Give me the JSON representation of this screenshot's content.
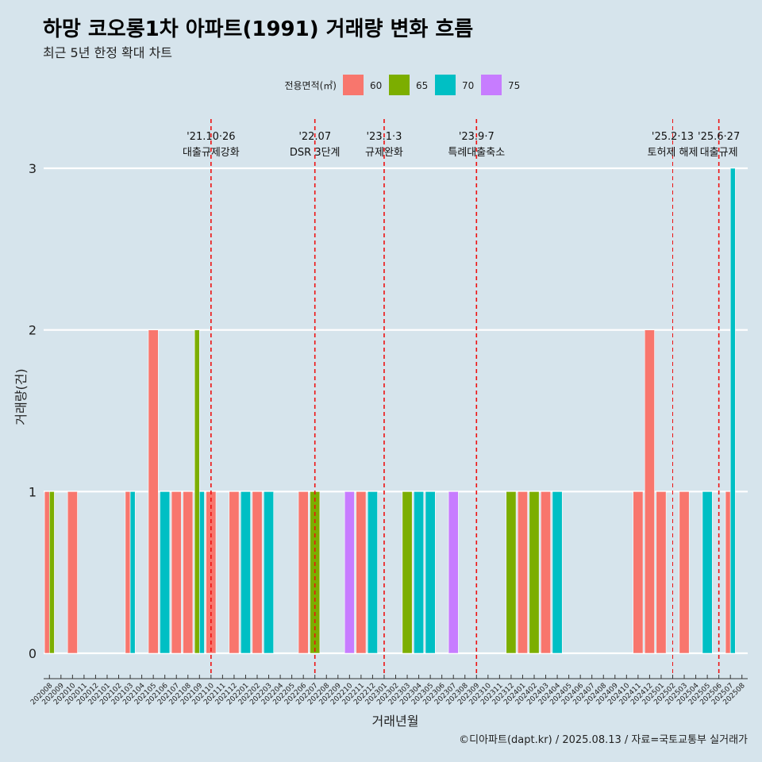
{
  "title": "하망 코오롱1차 아파트(1991) 거래량 변화 흐름",
  "subtitle": "최근 5년 한정 확대 차트",
  "caption": "©디아파트(dapt.kr) / 2025.08.13 / 자료=국토교통부 실거래가",
  "chart_data": {
    "type": "bar",
    "title": "하망 코오롱1차 아파트(1991) 거래량 변화 흐름",
    "subtitle": "최근 5년 한정 확대 차트",
    "xlabel": "거래년월",
    "ylabel": "거래량(건)",
    "ylim": [
      0,
      3
    ],
    "yticks": [
      0,
      1,
      2,
      3
    ],
    "grid": true,
    "legend": {
      "title": "전용면적(㎡)",
      "position": "top"
    },
    "categories": [
      "202008",
      "202009",
      "202010",
      "202011",
      "202012",
      "202101",
      "202102",
      "202103",
      "202104",
      "202105",
      "202106",
      "202107",
      "202108",
      "202109",
      "202110",
      "202111",
      "202112",
      "202201",
      "202202",
      "202203",
      "202204",
      "202205",
      "202206",
      "202207",
      "202208",
      "202209",
      "202210",
      "202211",
      "202212",
      "202301",
      "202302",
      "202303",
      "202304",
      "202305",
      "202306",
      "202307",
      "202308",
      "202309",
      "202310",
      "202311",
      "202312",
      "202401",
      "202402",
      "202403",
      "202404",
      "202405",
      "202406",
      "202407",
      "202408",
      "202409",
      "202410",
      "202411",
      "202412",
      "202501",
      "202502",
      "202503",
      "202504",
      "202505",
      "202506",
      "202507",
      "202508"
    ],
    "series": [
      {
        "name": "60",
        "color": "#F8766D",
        "values": [
          1,
          0,
          1,
          0,
          0,
          0,
          0,
          1,
          0,
          2,
          0,
          1,
          1,
          0,
          1,
          0,
          1,
          0,
          1,
          0,
          0,
          0,
          1,
          0,
          0,
          0,
          0,
          1,
          0,
          0,
          0,
          0,
          0,
          0,
          0,
          0,
          0,
          0,
          0,
          0,
          0,
          1,
          0,
          1,
          0,
          0,
          0,
          0,
          0,
          0,
          0,
          1,
          2,
          1,
          0,
          1,
          0,
          0,
          0,
          1,
          0
        ]
      },
      {
        "name": "65",
        "color": "#7CAE00",
        "values": [
          1,
          0,
          0,
          0,
          0,
          0,
          0,
          0,
          0,
          0,
          0,
          0,
          0,
          2,
          0,
          0,
          0,
          0,
          0,
          0,
          0,
          0,
          0,
          1,
          0,
          0,
          0,
          0,
          0,
          0,
          0,
          1,
          0,
          0,
          0,
          0,
          0,
          0,
          0,
          0,
          1,
          0,
          1,
          0,
          0,
          0,
          0,
          0,
          0,
          0,
          0,
          0,
          0,
          0,
          0,
          0,
          0,
          0,
          0,
          0,
          0
        ]
      },
      {
        "name": "70",
        "color": "#00BFC4",
        "values": [
          0,
          0,
          0,
          0,
          0,
          0,
          0,
          1,
          0,
          0,
          1,
          0,
          0,
          1,
          0,
          0,
          0,
          1,
          0,
          1,
          0,
          0,
          0,
          0,
          0,
          0,
          0,
          0,
          1,
          0,
          0,
          0,
          1,
          1,
          0,
          0,
          0,
          0,
          0,
          0,
          0,
          0,
          0,
          0,
          1,
          0,
          0,
          0,
          0,
          0,
          0,
          0,
          0,
          0,
          0,
          0,
          0,
          1,
          0,
          3,
          0
        ]
      },
      {
        "name": "75",
        "color": "#C77CFF",
        "values": [
          0,
          0,
          0,
          0,
          0,
          0,
          0,
          0,
          0,
          0,
          0,
          0,
          0,
          0,
          0,
          0,
          0,
          0,
          0,
          0,
          0,
          0,
          0,
          0,
          0,
          0,
          1,
          0,
          0,
          0,
          0,
          0,
          0,
          0,
          0,
          1,
          0,
          0,
          0,
          0,
          0,
          0,
          0,
          0,
          0,
          0,
          0,
          0,
          0,
          0,
          0,
          0,
          0,
          0,
          0,
          0,
          0,
          0,
          0,
          0,
          0
        ]
      }
    ],
    "annotations": [
      {
        "at": "202110",
        "lines": [
          "'21.10·26",
          "대출규제강화"
        ],
        "small": false
      },
      {
        "at": "202207",
        "lines": [
          "'22.07",
          "DSR 3단계"
        ],
        "small": false
      },
      {
        "at": "202301",
        "lines": [
          "'23.1·3",
          "규제완화"
        ],
        "small": false
      },
      {
        "at": "202309",
        "lines": [
          "'23.9·7",
          "특례대출축소"
        ],
        "small": false
      },
      {
        "at": "202502",
        "lines": [
          "'25.2·13",
          "토허제 해제"
        ],
        "small": true
      },
      {
        "at": "202506",
        "lines": [
          "'25.6·27",
          "대출규제"
        ],
        "small": false
      }
    ]
  }
}
